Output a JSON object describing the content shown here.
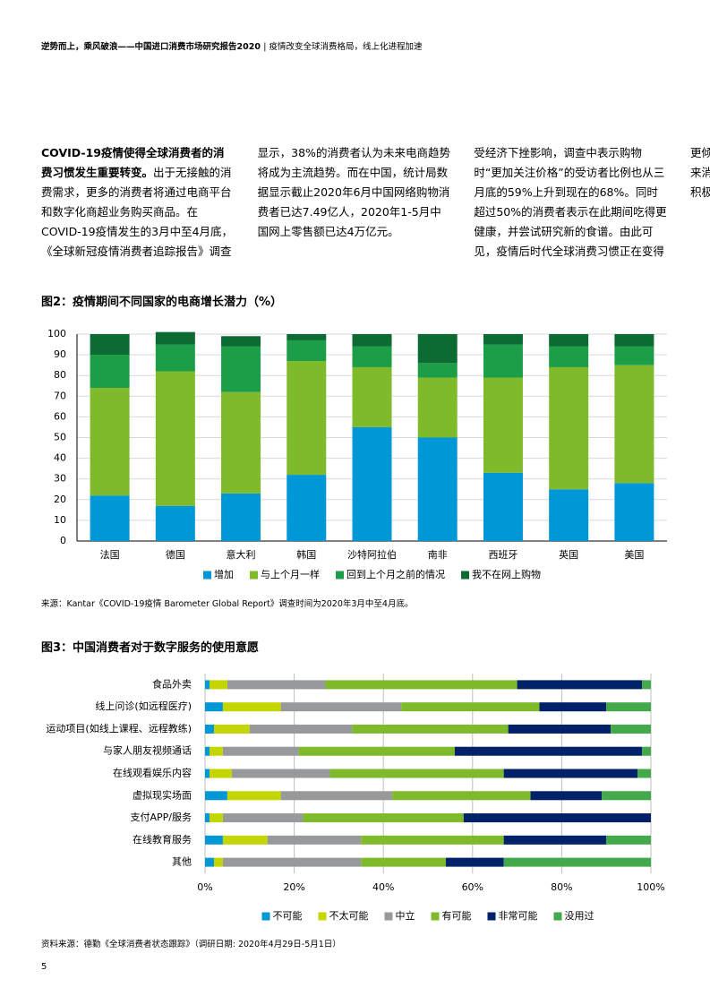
{
  "header": {
    "title": "逆势而上，乘风破浪——中国进口消费市场研究报告2020",
    "subtitle": "| 疫情改变全球消费格局，线上化进程加速"
  },
  "body": [
    {
      "lead": "COVID-19疫情使得全球消费者的消费习惯发生重要转变。",
      "text": "出于无接触的消费需求，更多的消费者将通过电商平台和数字化商超业务购买商品。在COVID-19疫情发生的3月中至4月底，《全球新冠疫情消费者追踪报告》调查显示，38%的消费者认为未来电商趋势将成为主流趋势。而在中国，统计局数据显示截止2020年6月中国网络购物消费者已达7.49亿人，2020年1-5月中国网上零售额已达4万亿元。"
    },
    {
      "text": "受经济下挫影响，调查中表示购物时“更加关注价格”的受访者比例也从三月底的59%上升到现在的68%。同时超过50%的消费者表示在此期间吃得更健康，并尝试研究新的食谱。由此可见，疫情后时代全球消费习惯正在变得更倾向线上购买、更理性、更健康，未来消费商家需要针对这一变化趋势给出积极应对。"
    }
  ],
  "chart_data": [
    {
      "type": "bar",
      "stacked": true,
      "horizontal": false,
      "title": "图2：疫情期间不同国家的电商增长潜力（%）",
      "categories": [
        "法国",
        "德国",
        "意大利",
        "韩国",
        "沙特阿拉伯",
        "南非",
        "西班牙",
        "英国",
        "美国"
      ],
      "series": [
        {
          "name": "增加",
          "color": "#0097d7",
          "values": [
            22,
            17,
            23,
            32,
            55,
            50,
            33,
            25,
            28
          ]
        },
        {
          "name": "与上个月一样",
          "color": "#7fba2a",
          "values": [
            52,
            65,
            49,
            55,
            29,
            29,
            46,
            59,
            57
          ]
        },
        {
          "name": "回到上个月之前的情况",
          "color": "#1c9e48",
          "values": [
            16,
            13,
            22,
            10,
            10,
            7,
            16,
            10,
            9
          ]
        },
        {
          "name": "我不在网上购物",
          "color": "#0c6a33",
          "values": [
            10,
            6,
            5,
            3,
            6,
            14,
            5,
            6,
            6
          ]
        }
      ],
      "ylim": [
        0,
        100
      ],
      "yticks": [
        0,
        10,
        20,
        30,
        40,
        50,
        60,
        70,
        80,
        90,
        100
      ],
      "grid": true,
      "legend": "bottom",
      "source": "来源：Kantar《COVID-19疫情 Barometer Global Report》调查时间为2020年3月中至4月底。"
    },
    {
      "type": "bar",
      "stacked": true,
      "horizontal": true,
      "title": "图3：中国消费者对于数字服务的使用意愿",
      "categories": [
        "食品外卖",
        "线上问诊(如远程医疗)",
        "运动项目(如线上课程、远程教练)",
        "与家人朋友视频通话",
        "在线观看娱乐内容",
        "虚拟现实场面",
        "支付APP/服务",
        "在线教育服务",
        "其他"
      ],
      "series": [
        {
          "name": "不可能",
          "color": "#0097d7",
          "values": [
            1,
            4,
            2,
            1,
            1,
            5,
            1,
            4,
            2
          ]
        },
        {
          "name": "不太可能",
          "color": "#c4d600",
          "values": [
            4,
            13,
            8,
            3,
            5,
            12,
            3,
            10,
            2
          ]
        },
        {
          "name": "中立",
          "color": "#97999b",
          "values": [
            22,
            27,
            23,
            17,
            22,
            25,
            18,
            21,
            31
          ]
        },
        {
          "name": "有可能",
          "color": "#7fba2a",
          "values": [
            43,
            31,
            35,
            35,
            39,
            31,
            36,
            32,
            19
          ]
        },
        {
          "name": "非常可能",
          "color": "#012169",
          "values": [
            28,
            15,
            23,
            42,
            30,
            16,
            42,
            23,
            13
          ]
        },
        {
          "name": "没用过",
          "color": "#43a94b",
          "values": [
            2,
            10,
            9,
            2,
            3,
            11,
            0,
            10,
            33
          ]
        }
      ],
      "xlim": [
        0,
        100
      ],
      "xticks": [
        {
          "value": 0,
          "label": "0%"
        },
        {
          "value": 20,
          "label": "20%"
        },
        {
          "value": 40,
          "label": "40%"
        },
        {
          "value": 60,
          "label": "60%"
        },
        {
          "value": 80,
          "label": "80%"
        },
        {
          "value": 100,
          "label": "100%"
        }
      ],
      "grid": true,
      "legend": "bottom",
      "source": "资料来源：德勤《全球消费者状态跟踪》（调研日期: 2020年4月29日-5月1日）"
    }
  ],
  "page_number": "5"
}
